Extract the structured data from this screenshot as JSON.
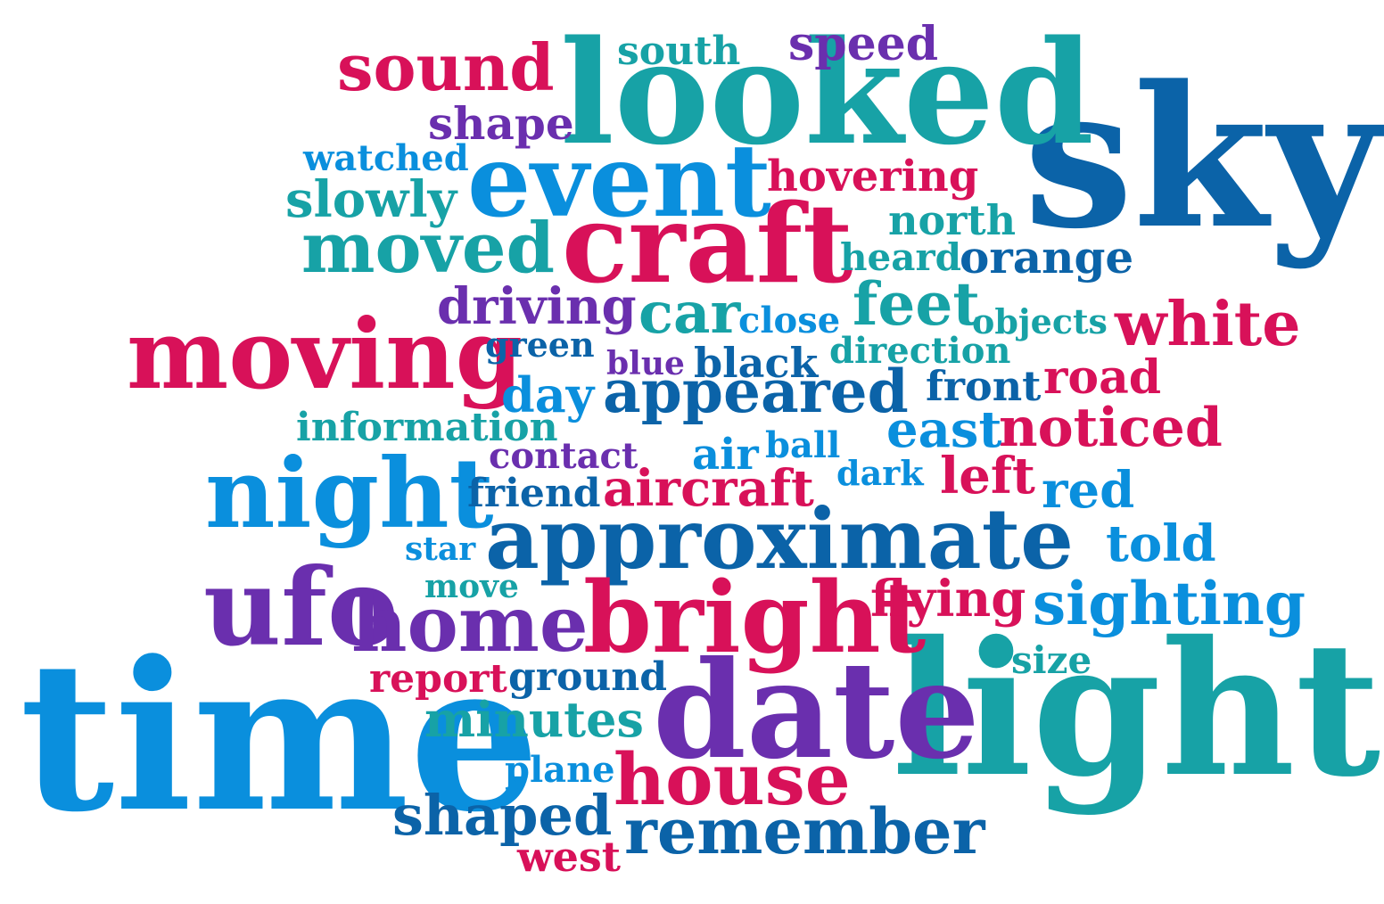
{
  "colors": {
    "pink": "#d81159",
    "teal": "#17a2a6",
    "purple": "#6a2fae",
    "blue": "#0a8fdd",
    "navy": "#0b63a8"
  },
  "words": {
    "sky": "sky",
    "light": "light",
    "time": "time",
    "looked": "looked",
    "craft": "craft",
    "event": "event",
    "date": "date",
    "approximate": "approximate",
    "bright": "bright",
    "night": "night",
    "moving": "moving",
    "ufo": "ufo",
    "home": "home",
    "house": "house",
    "remember": "remember",
    "moved": "moved",
    "sound": "sound",
    "appeared": "appeared",
    "sighting": "sighting",
    "white": "white",
    "feet": "feet",
    "noticed": "noticed",
    "aircraft": "aircraft",
    "shaped": "shaped",
    "minutes": "minutes",
    "car": "car",
    "flying": "flying",
    "slowly": "slowly",
    "hovering": "hovering",
    "orange": "orange",
    "north": "north",
    "driving": "driving",
    "speed": "speed",
    "shape": "shape",
    "south": "south",
    "watched": "watched",
    "heard": "heard",
    "close": "close",
    "objects": "objects",
    "green": "green",
    "blue": "blue",
    "black": "black",
    "direction": "direction",
    "day": "day",
    "front": "front",
    "road": "road",
    "information": "information",
    "east": "east",
    "contact": "contact",
    "air": "air",
    "ball": "ball",
    "dark": "dark",
    "left": "left",
    "friend": "friend",
    "red": "red",
    "star": "star",
    "told": "told",
    "move": "move",
    "size": "size",
    "report": "report",
    "ground": "ground",
    "plane": "plane",
    "west": "west"
  }
}
